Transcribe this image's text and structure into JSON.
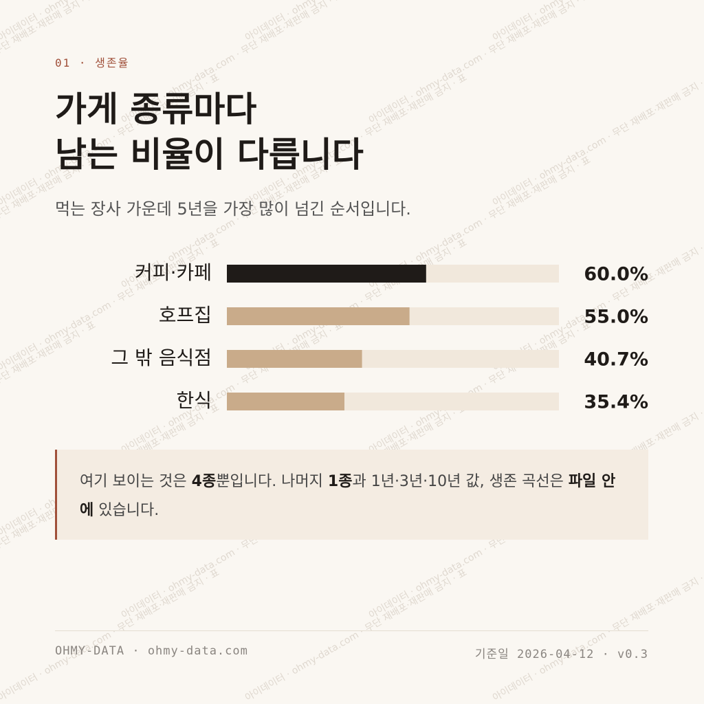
{
  "header": {
    "kicker": "01 · 생존율",
    "title": [
      "가게 종류마다",
      "남는 비율이 다릅니다"
    ],
    "subtitle": "먹는 장사 가운데 5년을 가장 많이 넘긴 순서입니다."
  },
  "chart_data": {
    "type": "hbar",
    "categories": [
      "커피·카페",
      "호프집",
      "그 밖 음식점",
      "한식"
    ],
    "values": [
      60.0,
      55.0,
      40.7,
      35.4
    ],
    "value_labels": [
      "60.0%",
      "55.0%",
      "40.7%",
      "35.4%"
    ],
    "colors": [
      "#1f1b18",
      "#c9ab8a",
      "#c9ab8a",
      "#c9ab8a"
    ],
    "track_color": "#f1e8dc",
    "xlim": [
      0,
      100
    ]
  },
  "note": {
    "segments": [
      {
        "text": "여기 보이는 것은 ",
        "bold": false
      },
      {
        "text": "4종",
        "bold": true
      },
      {
        "text": "뿐입니다. 나머지 ",
        "bold": false
      },
      {
        "text": "1종",
        "bold": true
      },
      {
        "text": "과 1년·3년·10년 값, 생존 곡선은 ",
        "bold": false
      },
      {
        "text": "파일 안에",
        "bold": true
      },
      {
        "text": " 있습니다.",
        "bold": false
      }
    ]
  },
  "footer": {
    "left": "OHMY-DATA · ohmy-data.com",
    "right": "기준일 2026-04-12 · v0.3"
  },
  "watermark": "아이데이터 · ohmy-data.com · 무단 재배포·재판매 금지 · 표"
}
